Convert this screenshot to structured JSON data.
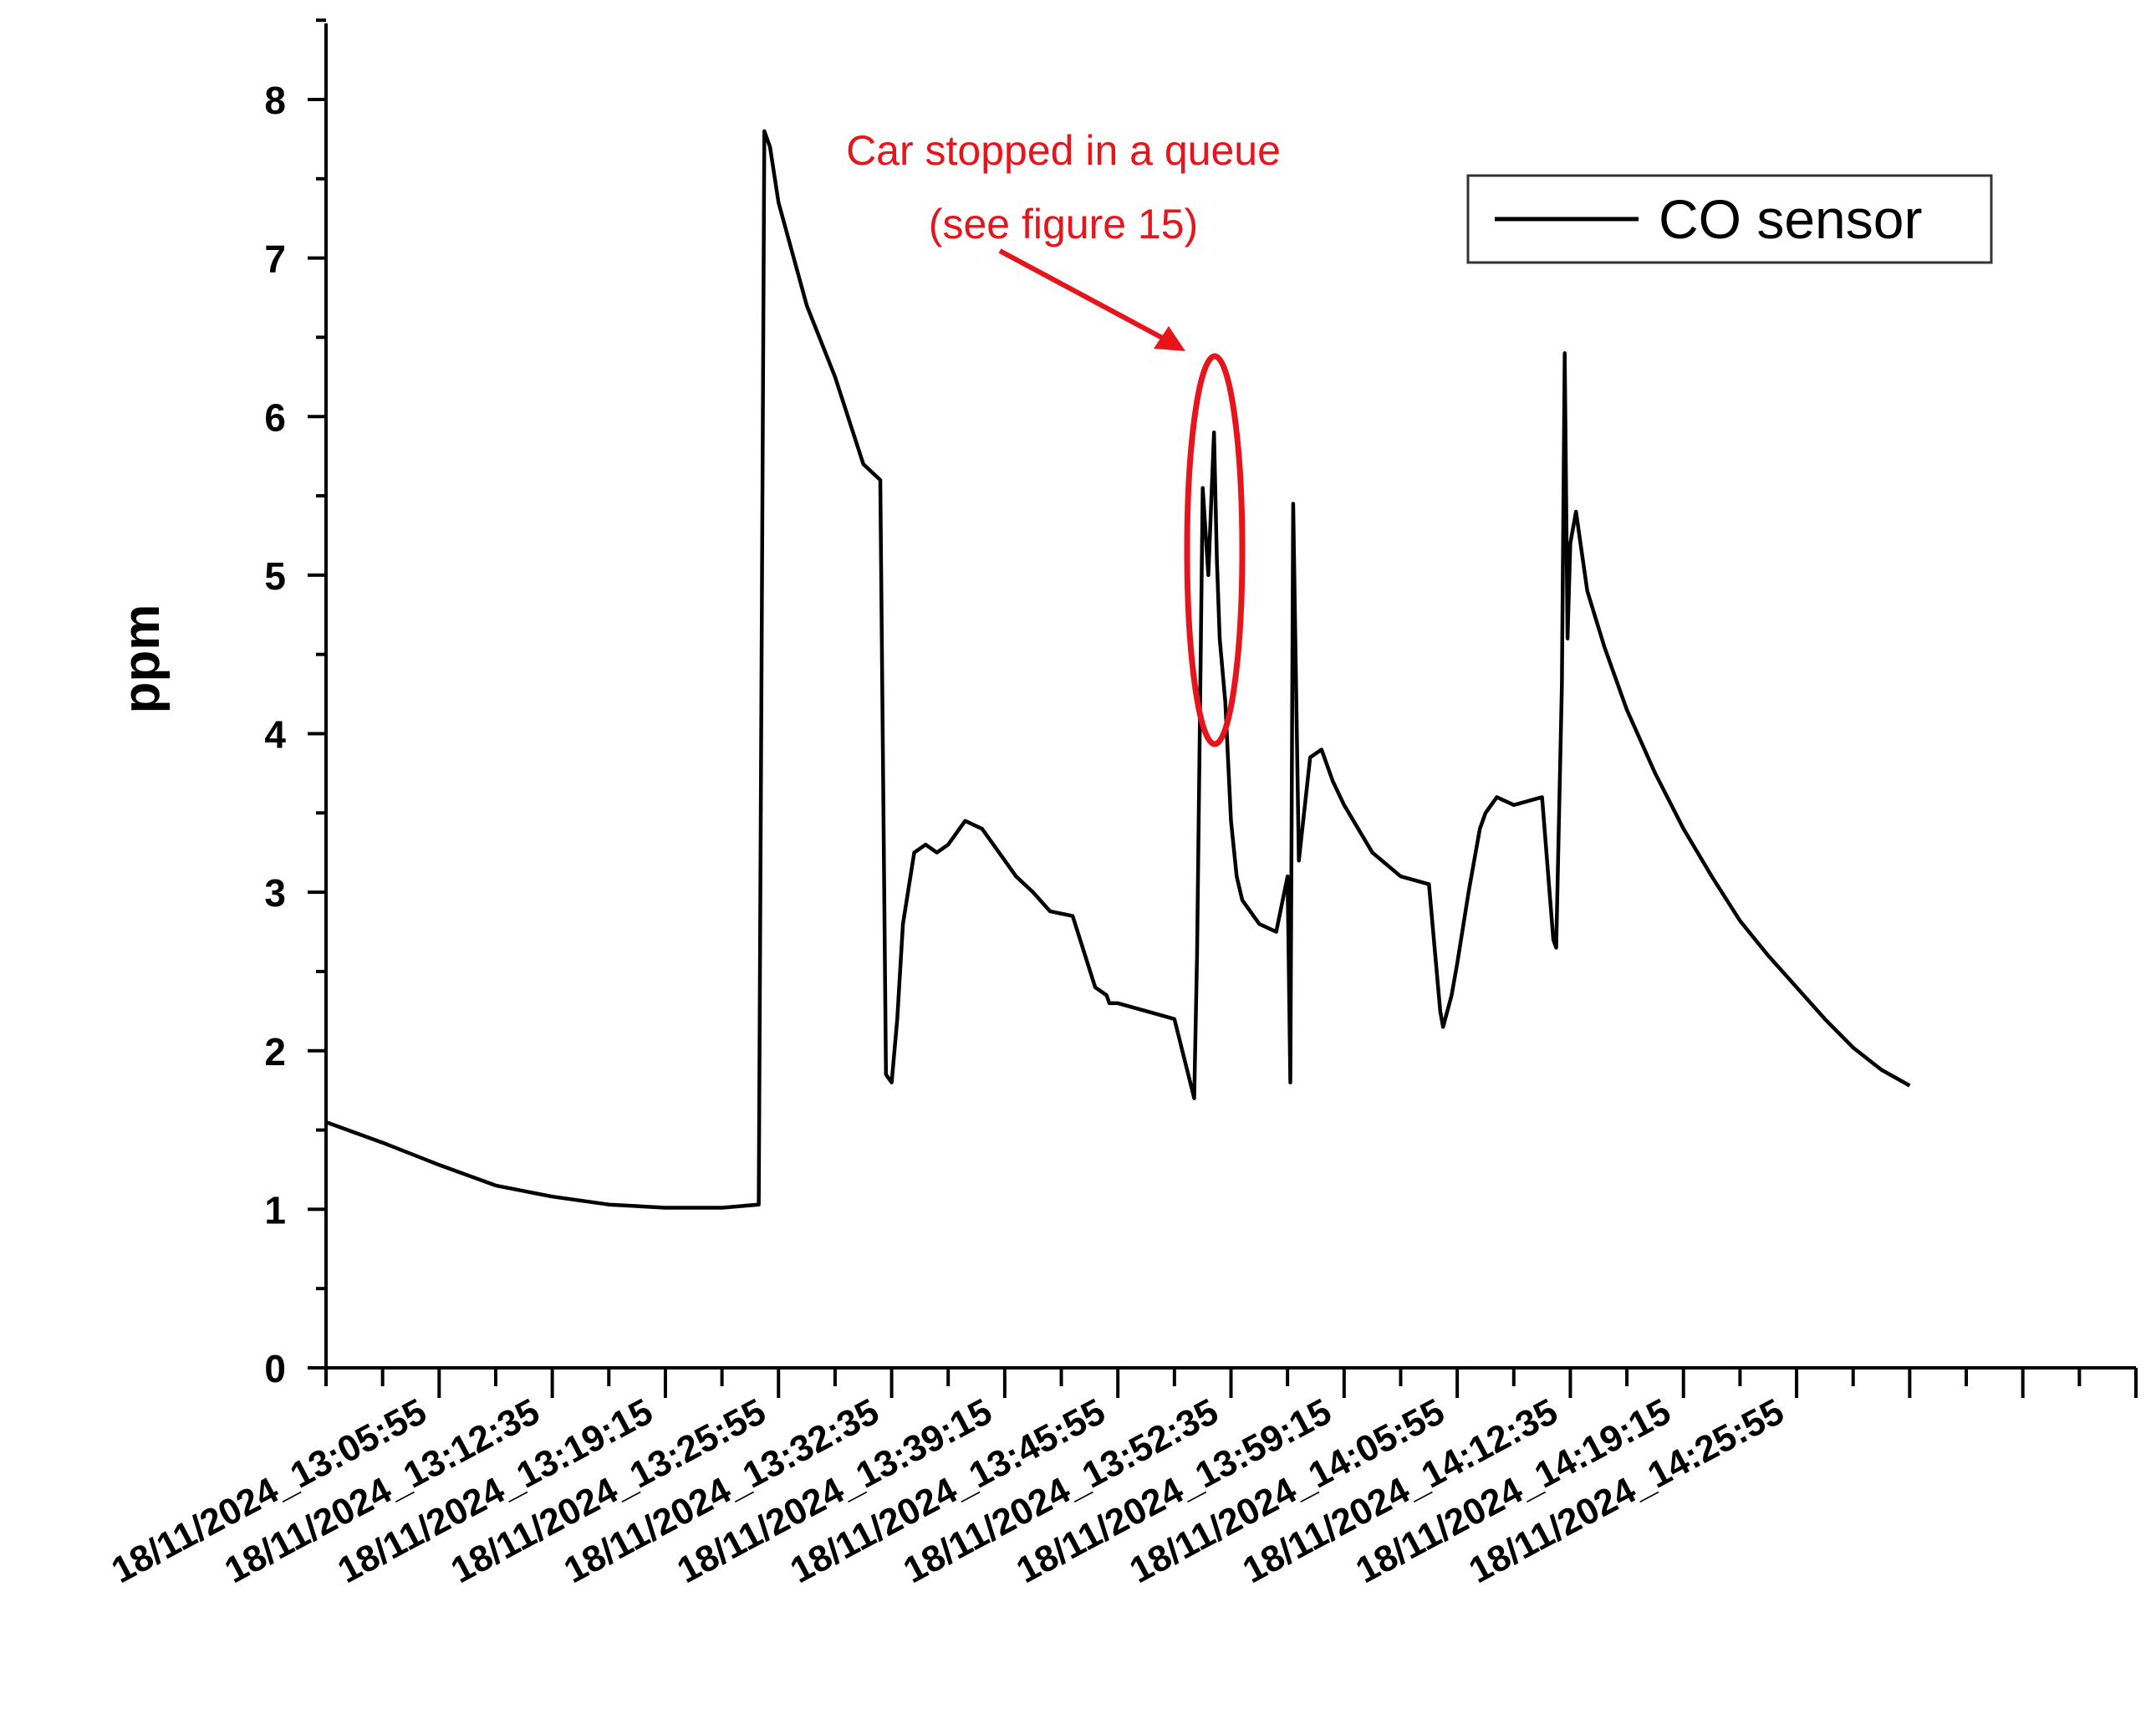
{
  "chart_data": {
    "type": "line",
    "title": "",
    "xlabel": "",
    "ylabel": "ppm",
    "ylim": [
      0,
      8.5
    ],
    "yticks": [
      0,
      1,
      2,
      3,
      4,
      5,
      6,
      7,
      8
    ],
    "xlim": [
      0,
      32
    ],
    "x_tick_positions": [
      2,
      4,
      6,
      8,
      10,
      12,
      14,
      16,
      18,
      20,
      22,
      24,
      26
    ],
    "x_tick_labels": [
      "18/11/2024_13:05:55",
      "18/11/2024_13:12:35",
      "18/11/2024_13:19:15",
      "18/11/2024_13:25:55",
      "18/11/2024_13:32:35",
      "18/11/2024_13:39:15",
      "18/11/2024_13:45:55",
      "18/11/2024_13:52:35",
      "18/11/2024_13:59:15",
      "18/11/2024_14:05:55",
      "18/11/2024_14:12:35",
      "18/11/2024_14:19:15",
      "18/11/2024_14:25:55"
    ],
    "legend_position": "top-right",
    "series": [
      {
        "name": "CO sensor",
        "color": "#000000",
        "x": [
          0.0,
          1.0,
          2.0,
          3.0,
          4.0,
          5.0,
          6.0,
          7.0,
          7.65,
          7.75,
          7.85,
          8.0,
          8.5,
          9.0,
          9.5,
          9.8,
          9.9,
          10.0,
          10.1,
          10.2,
          10.4,
          10.6,
          10.8,
          11.0,
          11.3,
          11.6,
          11.9,
          12.2,
          12.5,
          12.8,
          13.2,
          13.6,
          13.8,
          13.85,
          14.0,
          14.5,
          15.0,
          15.35,
          15.4,
          15.5,
          15.6,
          15.7,
          15.75,
          15.8,
          15.9,
          16.0,
          16.1,
          16.2,
          16.5,
          16.8,
          17.0,
          17.05,
          17.1,
          17.2,
          17.4,
          17.6,
          17.8,
          18.0,
          18.5,
          19.0,
          19.5,
          19.7,
          19.75,
          19.9,
          20.0,
          20.2,
          20.4,
          20.5,
          20.7,
          21.0,
          21.5,
          21.7,
          21.75,
          21.85,
          21.9,
          21.95,
          22.0,
          22.1,
          22.3,
          22.6,
          23.0,
          23.5,
          24.0,
          24.5,
          25.0,
          25.5,
          26.0,
          26.5,
          27.0,
          27.5,
          28.0
        ],
        "values": [
          1.55,
          1.42,
          1.28,
          1.15,
          1.08,
          1.03,
          1.01,
          1.01,
          1.03,
          7.8,
          7.7,
          7.35,
          6.7,
          6.25,
          5.7,
          5.6,
          1.85,
          1.8,
          2.2,
          2.8,
          3.25,
          3.3,
          3.25,
          3.3,
          3.45,
          3.4,
          3.25,
          3.1,
          3.0,
          2.88,
          2.85,
          2.4,
          2.35,
          2.3,
          2.3,
          2.25,
          2.2,
          1.7,
          2.6,
          5.55,
          5.0,
          5.9,
          5.1,
          4.6,
          4.2,
          3.45,
          3.1,
          2.95,
          2.8,
          2.75,
          3.1,
          1.8,
          5.45,
          3.2,
          3.85,
          3.9,
          3.7,
          3.55,
          3.25,
          3.1,
          3.05,
          2.25,
          2.15,
          2.35,
          2.55,
          3.0,
          3.4,
          3.5,
          3.6,
          3.55,
          3.6,
          2.7,
          2.65,
          4.3,
          6.4,
          4.6,
          5.2,
          5.4,
          4.9,
          4.55,
          4.15,
          3.75,
          3.4,
          3.1,
          2.82,
          2.6,
          2.4,
          2.2,
          2.02,
          1.88,
          1.78
        ]
      }
    ],
    "legend_label": "CO sensor",
    "annotation": {
      "text_line1": "Car stopped in a queue",
      "text_line2": "(see figure 15)",
      "color": "#e8141c",
      "target_x": 15.65,
      "target_y": 5.15
    }
  }
}
